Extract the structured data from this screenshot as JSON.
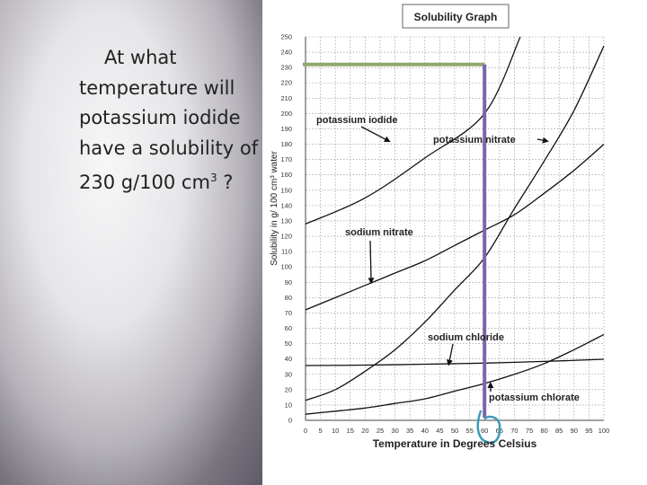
{
  "slide": {
    "question_part1": "At what temperature will potassium iodide have a solubility of 230 g/100 cm",
    "question_sup": "3",
    "question_part2": " ?"
  },
  "chart_data": {
    "type": "line",
    "title": "Solubility Graph",
    "xlabel": "Temperature in Degrees Celsius",
    "ylabel": "Solubility in g/ 100 cm³ water",
    "xlim": [
      0,
      100
    ],
    "ylim": [
      0,
      250
    ],
    "x_ticks": [
      0,
      5,
      10,
      15,
      20,
      25,
      30,
      35,
      40,
      45,
      50,
      55,
      60,
      65,
      70,
      75,
      80,
      85,
      90,
      95,
      100
    ],
    "y_ticks": [
      0,
      10,
      20,
      30,
      40,
      50,
      60,
      70,
      80,
      90,
      100,
      110,
      120,
      130,
      140,
      150,
      160,
      170,
      180,
      190,
      200,
      210,
      220,
      230,
      240,
      250
    ],
    "grid": true,
    "series": [
      {
        "name": "potassium iodide",
        "x": [
          0,
          20,
          40,
          60,
          72
        ],
        "y": [
          128,
          145,
          171,
          200,
          250
        ]
      },
      {
        "name": "potassium nitrate",
        "x": [
          0,
          10,
          20,
          30,
          40,
          50,
          60,
          70,
          80,
          90,
          100
        ],
        "y": [
          13,
          20,
          32,
          46,
          64,
          85,
          106,
          138,
          169,
          202,
          244
        ]
      },
      {
        "name": "sodium nitrate",
        "x": [
          0,
          10,
          20,
          30,
          40,
          50,
          60,
          70,
          80,
          90,
          100
        ],
        "y": [
          72,
          80,
          88,
          96,
          104,
          114,
          124,
          134,
          148,
          163,
          180
        ]
      },
      {
        "name": "sodium chloride",
        "x": [
          0,
          20,
          40,
          60,
          80,
          100
        ],
        "y": [
          35.7,
          36,
          36.6,
          37.3,
          38.4,
          39.8
        ]
      },
      {
        "name": "potassium chlorate",
        "x": [
          0,
          10,
          20,
          30,
          40,
          50,
          60,
          70,
          80,
          90,
          100
        ],
        "y": [
          4,
          6,
          8,
          11,
          14,
          19,
          24,
          30,
          37,
          46,
          56
        ]
      }
    ],
    "annotations": [
      {
        "label": "potassium iodide",
        "points_to": {
          "x": 28,
          "y": 182
        }
      },
      {
        "label": "potassium nitrate",
        "points_to": {
          "x": 81,
          "y": 182
        }
      },
      {
        "label": "sodium nitrate",
        "points_to": {
          "x": 22,
          "y": 90
        }
      },
      {
        "label": "sodium chloride",
        "points_to": {
          "x": 48,
          "y": 36.5
        }
      },
      {
        "label": "potassium chlorate",
        "points_to": {
          "x": 62,
          "y": 24
        }
      }
    ],
    "guide_lines": {
      "target_y": 232,
      "at_x": 60,
      "horizontal_color": "#8fa86e",
      "vertical_color": "#7b64a8"
    },
    "handwritten_mark": {
      "at_x": 62,
      "color": "#3f9ab8"
    }
  }
}
